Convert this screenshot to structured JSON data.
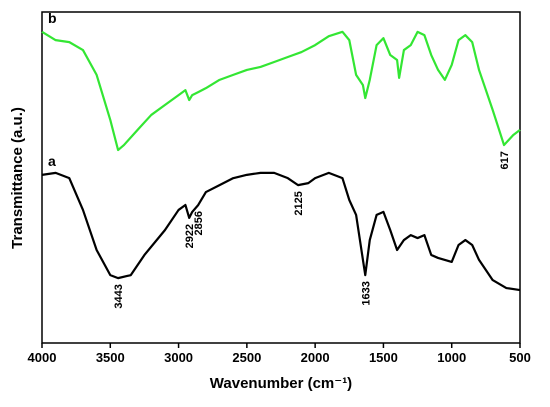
{
  "chart_data": {
    "type": "line",
    "xlabel": "Wavenumber (cm⁻¹)",
    "ylabel": "Transmittance (a.u.)",
    "xlim": [
      4000,
      500
    ],
    "xticks": [
      4000,
      3500,
      3000,
      2500,
      2000,
      1500,
      1000,
      500
    ],
    "ylim": [
      0,
      100
    ],
    "yticks": [],
    "series": [
      {
        "name": "a",
        "color": "#000000",
        "x": [
          4000,
          3900,
          3800,
          3700,
          3600,
          3500,
          3443,
          3350,
          3250,
          3100,
          3000,
          2950,
          2922,
          2900,
          2856,
          2800,
          2700,
          2600,
          2500,
          2400,
          2300,
          2200,
          2125,
          2050,
          2000,
          1900,
          1800,
          1750,
          1700,
          1650,
          1633,
          1600,
          1550,
          1500,
          1450,
          1400,
          1350,
          1300,
          1250,
          1200,
          1150,
          1100,
          1050,
          1000,
          950,
          900,
          850,
          800,
          700,
          600,
          500
        ],
        "values": [
          50.8,
          51.4,
          49.8,
          40.2,
          28.1,
          20.5,
          19.6,
          20.5,
          26.6,
          34.1,
          40.2,
          41.7,
          37.8,
          39.6,
          41.7,
          45.6,
          47.7,
          49.8,
          50.8,
          51.4,
          51.4,
          49.8,
          47.7,
          48.3,
          49.8,
          51.4,
          49.8,
          43.2,
          38.7,
          25.1,
          20.5,
          31.1,
          38.7,
          39.6,
          34.1,
          28.1,
          31.1,
          32.6,
          31.7,
          32.6,
          26.6,
          25.7,
          25.1,
          24.5,
          29.6,
          31.1,
          29.6,
          25.1,
          19.0,
          16.6,
          16.0
        ]
      },
      {
        "name": "b",
        "color": "#33e633",
        "x": [
          4000,
          3900,
          3800,
          3700,
          3600,
          3500,
          3443,
          3400,
          3300,
          3200,
          3100,
          3000,
          2950,
          2922,
          2900,
          2856,
          2800,
          2700,
          2600,
          2500,
          2400,
          2300,
          2200,
          2100,
          2000,
          1900,
          1800,
          1750,
          1700,
          1650,
          1633,
          1600,
          1550,
          1500,
          1450,
          1400,
          1385,
          1350,
          1300,
          1250,
          1200,
          1150,
          1100,
          1050,
          1000,
          950,
          900,
          850,
          800,
          700,
          617,
          550,
          500
        ],
        "values": [
          94.0,
          91.5,
          90.9,
          88.5,
          81.0,
          67.4,
          58.3,
          59.8,
          64.4,
          68.9,
          71.9,
          74.9,
          76.4,
          73.4,
          74.9,
          75.8,
          77.0,
          79.5,
          81.0,
          82.5,
          83.4,
          84.9,
          86.4,
          87.9,
          90.0,
          92.7,
          94.0,
          91.5,
          81.0,
          77.9,
          74.0,
          79.5,
          90.0,
          92.1,
          87.0,
          85.5,
          80.1,
          88.5,
          90.0,
          94.0,
          93.0,
          87.0,
          82.5,
          79.5,
          84.0,
          91.5,
          93.0,
          90.9,
          82.5,
          70.4,
          59.8,
          62.8,
          64.4
        ]
      }
    ],
    "annotations": [
      {
        "x": 3443,
        "label": "3443"
      },
      {
        "x": 2922,
        "label": "2922"
      },
      {
        "x": 2856,
        "label": "2856"
      },
      {
        "x": 2125,
        "label": "2125"
      },
      {
        "x": 1633,
        "label": "1633"
      },
      {
        "x": 617,
        "label": "617"
      }
    ]
  }
}
